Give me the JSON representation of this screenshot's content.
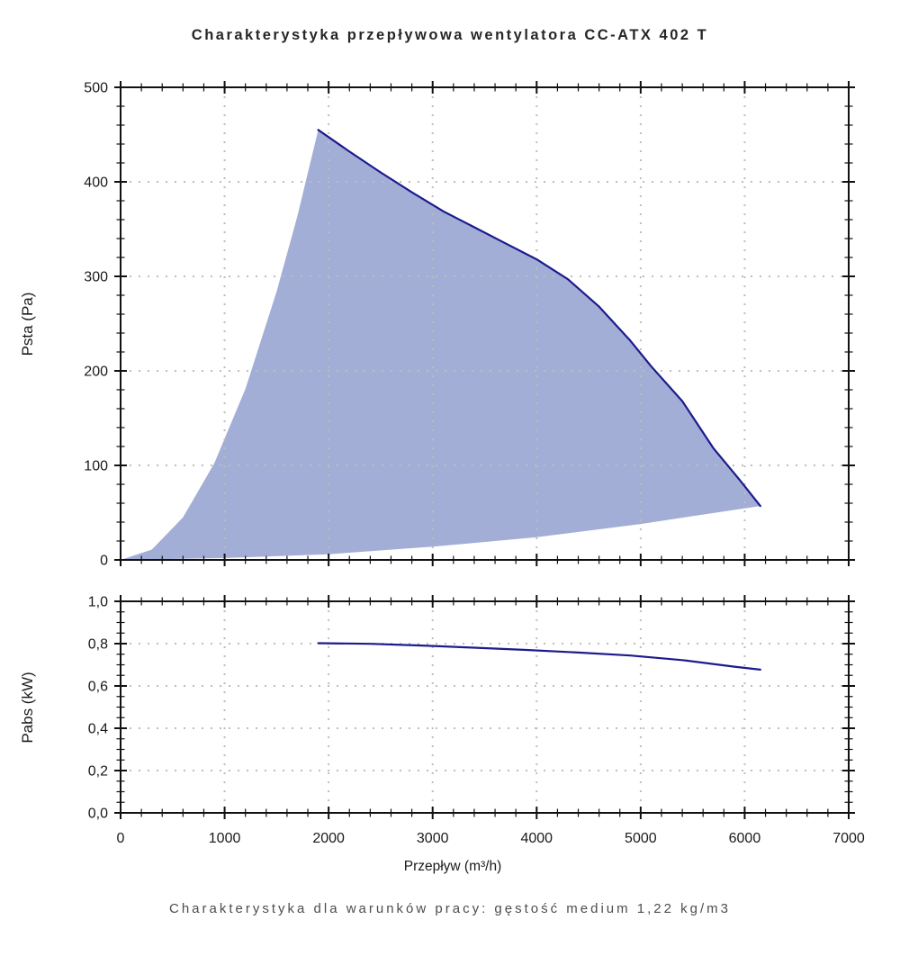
{
  "title": "Charakterystyka przepływowa wentylatora CC-ATX 402 T",
  "footnote": "Charakterystyka dla warunków pracy: gęstość medium 1,22 kg/m3",
  "xaxis": {
    "label": "Przepływ (m³/h)",
    "min": 0,
    "max": 7000,
    "major_ticks": [
      0,
      1000,
      2000,
      3000,
      4000,
      5000,
      6000,
      7000
    ],
    "tick_labels": [
      "0",
      "1000",
      "2000",
      "3000",
      "4000",
      "5000",
      "6000",
      "7000"
    ],
    "minor_step": 200
  },
  "colors": {
    "envelope_fill": "#a3aed6",
    "curve": "#1b1b8e",
    "grid": "#bdbdbd",
    "axis": "#111111",
    "text": "#1a1a1a"
  },
  "chart_data": [
    {
      "type": "area",
      "name": "pressure",
      "ylabel": "Psta (Pa)",
      "ylim": [
        0,
        500
      ],
      "ytick_values": [
        0,
        100,
        200,
        300,
        400,
        500
      ],
      "ytick_labels": [
        "0",
        "100",
        "200",
        "300",
        "400",
        "500"
      ],
      "y_minor_step": 20,
      "grid": true,
      "series": [
        {
          "name": "surge-limit-boundary",
          "stroke": false,
          "points": [
            [
              0,
              0
            ],
            [
              300,
              11
            ],
            [
              600,
              45
            ],
            [
              900,
              102
            ],
            [
              1200,
              181
            ],
            [
              1500,
              284
            ],
            [
              1700,
              364
            ],
            [
              1900,
              455
            ]
          ]
        },
        {
          "name": "max-performance-curve",
          "stroke": true,
          "points": [
            [
              1900,
              455
            ],
            [
              2200,
              432
            ],
            [
              2500,
              410
            ],
            [
              2800,
              389
            ],
            [
              3100,
              369
            ],
            [
              3400,
              352
            ],
            [
              3700,
              335
            ],
            [
              4000,
              318
            ],
            [
              4300,
              297
            ],
            [
              4600,
              268
            ],
            [
              4900,
              232
            ],
            [
              5100,
              205
            ],
            [
              5400,
              168
            ],
            [
              5700,
              118
            ],
            [
              5950,
              85
            ],
            [
              6150,
              57
            ]
          ]
        },
        {
          "name": "min-pressure-boundary",
          "stroke": false,
          "points": [
            [
              0,
              0
            ],
            [
              1000,
              2
            ],
            [
              2000,
              6
            ],
            [
              3000,
              14
            ],
            [
              4000,
              24
            ],
            [
              5000,
              38
            ],
            [
              5600,
              48
            ],
            [
              6150,
              57
            ]
          ]
        }
      ]
    },
    {
      "type": "line",
      "name": "power",
      "ylabel": "Pabs (kW)",
      "ylim": [
        0,
        1
      ],
      "ytick_values": [
        0,
        0.2,
        0.4,
        0.6,
        0.8,
        1.0
      ],
      "ytick_labels": [
        "0,0",
        "0,2",
        "0,4",
        "0,6",
        "0,8",
        "1,0"
      ],
      "y_minor_step": 0.05,
      "grid": true,
      "series": [
        {
          "name": "absorbed-power-curve",
          "stroke": true,
          "points": [
            [
              1900,
              0.802
            ],
            [
              2400,
              0.799
            ],
            [
              2900,
              0.791
            ],
            [
              3400,
              0.781
            ],
            [
              3900,
              0.77
            ],
            [
              4400,
              0.758
            ],
            [
              4900,
              0.744
            ],
            [
              5400,
              0.722
            ],
            [
              5900,
              0.691
            ],
            [
              6150,
              0.677
            ]
          ]
        }
      ]
    }
  ]
}
